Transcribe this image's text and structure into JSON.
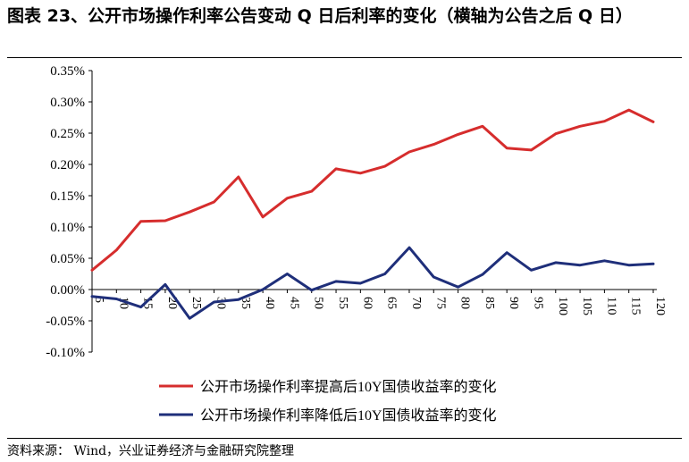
{
  "header": {
    "title": "图表 23、公开市场操作利率公告变动 Q 日后利率的变化（横轴为公告之后 Q 日）"
  },
  "footer": {
    "source": "资料来源：   Wind，兴业证券经济与金融研究院整理"
  },
  "colors": {
    "series_red": "#d62d2d",
    "series_blue": "#1f2f7a"
  },
  "chart_data": {
    "type": "line",
    "title": "",
    "xlabel": "",
    "ylabel": "",
    "ylim": [
      -0.001,
      0.0035
    ],
    "yticks": [
      -0.001,
      -0.0005,
      0,
      0.0005,
      0.001,
      0.0015,
      0.002,
      0.0025,
      0.003,
      0.0035
    ],
    "ytick_labels": [
      "-0.10%",
      "-0.05%",
      "0.00%",
      "0.05%",
      "0.10%",
      "0.15%",
      "0.20%",
      "0.25%",
      "0.30%",
      "0.35%"
    ],
    "x": [
      5,
      10,
      15,
      20,
      25,
      30,
      35,
      40,
      45,
      50,
      55,
      60,
      65,
      70,
      75,
      80,
      85,
      90,
      95,
      100,
      105,
      110,
      115,
      120
    ],
    "xtick_labels": [
      "5",
      "10",
      "15",
      "20",
      "25",
      "30",
      "35",
      "40",
      "45",
      "50",
      "55",
      "60",
      "65",
      "70",
      "75",
      "80",
      "85",
      "90",
      "95",
      "100",
      "105",
      "110",
      "115",
      "120"
    ],
    "legend_position": "bottom",
    "series": [
      {
        "name": "公开市场操作利率提高后10Y国债收益率的变化",
        "color": "#d62d2d",
        "values": [
          0.00031,
          0.00063,
          0.00109,
          0.0011,
          0.00124,
          0.0014,
          0.0018,
          0.00116,
          0.00146,
          0.00157,
          0.00193,
          0.00186,
          0.00197,
          0.0022,
          0.00232,
          0.00248,
          0.00261,
          0.00226,
          0.00223,
          0.00249,
          0.00261,
          0.00269,
          0.00287,
          0.00268
        ]
      },
      {
        "name": "公开市场操作利率降低后10Y国债收益率的变化",
        "color": "#1f2f7a",
        "values": [
          -0.00011,
          -0.00015,
          -0.00028,
          8e-05,
          -0.00046,
          -0.0002,
          -0.00016,
          0.0,
          0.00025,
          -1e-05,
          0.00013,
          0.0001,
          0.00025,
          0.00067,
          0.0002,
          4e-05,
          0.00024,
          0.00059,
          0.00031,
          0.00043,
          0.00039,
          0.00046,
          0.00039,
          0.00041
        ]
      }
    ]
  }
}
